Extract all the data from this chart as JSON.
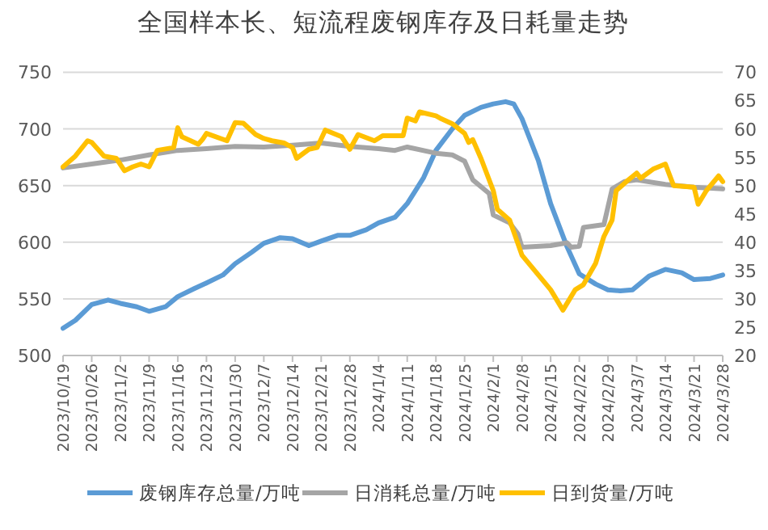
{
  "chart_data": {
    "type": "line",
    "title": "全国样本长、短流程废钢库存及日耗量走势",
    "xlim": [
      "2023-10-19",
      "2024-03-28"
    ],
    "xticks": [
      {
        "value": "2023-10-19",
        "label": "2023/10/19"
      },
      {
        "value": "2023-10-26",
        "label": "2023/10/26"
      },
      {
        "value": "2023-11-02",
        "label": "2023/11/2"
      },
      {
        "value": "2023-11-09",
        "label": "2023/11/9"
      },
      {
        "value": "2023-11-16",
        "label": "2023/11/16"
      },
      {
        "value": "2023-11-23",
        "label": "2023/11/23"
      },
      {
        "value": "2023-11-30",
        "label": "2023/11/30"
      },
      {
        "value": "2023-12-07",
        "label": "2023/12/7"
      },
      {
        "value": "2023-12-14",
        "label": "2023/12/14"
      },
      {
        "value": "2023-12-21",
        "label": "2023/12/21"
      },
      {
        "value": "2023-12-28",
        "label": "2023/12/28"
      },
      {
        "value": "2024-01-04",
        "label": "2024/1/4"
      },
      {
        "value": "2024-01-11",
        "label": "2024/1/11"
      },
      {
        "value": "2024-01-18",
        "label": "2024/1/18"
      },
      {
        "value": "2024-01-25",
        "label": "2024/1/25"
      },
      {
        "value": "2024-02-01",
        "label": "2024/2/1"
      },
      {
        "value": "2024-02-08",
        "label": "2024/2/8"
      },
      {
        "value": "2024-02-15",
        "label": "2024/2/15"
      },
      {
        "value": "2024-02-22",
        "label": "2024/2/22"
      },
      {
        "value": "2024-02-29",
        "label": "2024/2/29"
      },
      {
        "value": "2024-03-07",
        "label": "2024/3/7"
      },
      {
        "value": "2024-03-14",
        "label": "2024/3/14"
      },
      {
        "value": "2024-03-21",
        "label": "2024/3/21"
      },
      {
        "value": "2024-03-28",
        "label": "2024/3/28"
      }
    ],
    "ylim": [
      500,
      750
    ],
    "yticks": [
      500,
      550,
      600,
      650,
      700,
      750
    ],
    "y2lim": [
      20,
      70
    ],
    "y2ticks": [
      20,
      25,
      30,
      35,
      40,
      45,
      50,
      55,
      60,
      65,
      70
    ],
    "grid": "y",
    "legend": "bottom",
    "series": [
      {
        "name": "废钢库存总量/万吨",
        "color": "#5b9bd5",
        "x": [
          "2023-10-19",
          "2023-10-22",
          "2023-10-26",
          "2023-10-30",
          "2023-11-02",
          "2023-11-06",
          "2023-11-09",
          "2023-11-13",
          "2023-11-16",
          "2023-11-20",
          "2023-11-23",
          "2023-11-27",
          "2023-11-30",
          "2023-12-04",
          "2023-12-07",
          "2023-12-11",
          "2023-12-14",
          "2023-12-18",
          "2023-12-21",
          "2023-12-25",
          "2023-12-28",
          "2024-01-01",
          "2024-01-04",
          "2024-01-08",
          "2024-01-11",
          "2024-01-15",
          "2024-01-18",
          "2024-01-22",
          "2024-01-25",
          "2024-01-29",
          "2024-02-01",
          "2024-02-04",
          "2024-02-06",
          "2024-02-08",
          "2024-02-12",
          "2024-02-15",
          "2024-02-19",
          "2024-02-22",
          "2024-02-26",
          "2024-02-29",
          "2024-03-03",
          "2024-03-06",
          "2024-03-10",
          "2024-03-14",
          "2024-03-18",
          "2024-03-21",
          "2024-03-25",
          "2024-03-28"
        ],
        "values": [
          524,
          531,
          545,
          549,
          546,
          543,
          539,
          543,
          552,
          559,
          564,
          571,
          581,
          591,
          599,
          604,
          603,
          597,
          601,
          606,
          606,
          611,
          617,
          622,
          634,
          657,
          681,
          700,
          712,
          719,
          722,
          724,
          722,
          709,
          672,
          634,
          596,
          572,
          563,
          558,
          557,
          558,
          570,
          576,
          573,
          567,
          568,
          571
        ]
      },
      {
        "name": "日消耗总量/万吨",
        "color": "#a5a5a5",
        "axis": "y2",
        "x": [
          "2023-10-19",
          "2023-10-26",
          "2023-11-02",
          "2023-11-09",
          "2023-11-16",
          "2023-11-23",
          "2023-11-30",
          "2023-12-07",
          "2023-12-14",
          "2023-12-21",
          "2023-12-28",
          "2024-01-04",
          "2024-01-08",
          "2024-01-11",
          "2024-01-18",
          "2024-01-22",
          "2024-01-25",
          "2024-01-27",
          "2024-01-31",
          "2024-02-01",
          "2024-02-05",
          "2024-02-07",
          "2024-02-08",
          "2024-02-15",
          "2024-02-19",
          "2024-02-20",
          "2024-02-22",
          "2024-02-23",
          "2024-02-28",
          "2024-03-01",
          "2024-03-04",
          "2024-03-07",
          "2024-03-14",
          "2024-03-21",
          "2024-03-28"
        ],
        "values": [
          53.1,
          53.8,
          54.5,
          55.4,
          56.2,
          56.5,
          56.9,
          56.8,
          57.1,
          57.5,
          56.9,
          56.5,
          56.2,
          56.8,
          55.7,
          55.4,
          54.3,
          51,
          48.6,
          44.8,
          43.4,
          41.5,
          39.1,
          39.4,
          39.9,
          39.1,
          39.3,
          42.6,
          43.1,
          49.4,
          50.7,
          51,
          50.2,
          49.7,
          49.4
        ]
      },
      {
        "name": "日到货量/万吨",
        "color": "#ffc000",
        "axis": "y2",
        "x": [
          "2023-10-19",
          "2023-10-22",
          "2023-10-25",
          "2023-10-26",
          "2023-10-29",
          "2023-11-01",
          "2023-11-03",
          "2023-11-05",
          "2023-11-07",
          "2023-11-09",
          "2023-11-11",
          "2023-11-15",
          "2023-11-16",
          "2023-11-17",
          "2023-11-21",
          "2023-11-22",
          "2023-11-23",
          "2023-11-28",
          "2023-11-30",
          "2023-12-02",
          "2023-12-05",
          "2023-12-07",
          "2023-12-09",
          "2023-12-12",
          "2023-12-14",
          "2023-12-15",
          "2023-12-18",
          "2023-12-20",
          "2023-12-22",
          "2023-12-26",
          "2023-12-28",
          "2023-12-30",
          "2024-01-03",
          "2024-01-05",
          "2024-01-10",
          "2024-01-11",
          "2024-01-13",
          "2024-01-14",
          "2024-01-18",
          "2024-01-19",
          "2024-01-22",
          "2024-01-25",
          "2024-01-26",
          "2024-01-27",
          "2024-01-29",
          "2024-02-01",
          "2024-02-02",
          "2024-02-05",
          "2024-02-08",
          "2024-02-15",
          "2024-02-18",
          "2024-02-21",
          "2024-02-23",
          "2024-02-26",
          "2024-02-28",
          "2024-03-01",
          "2024-03-02",
          "2024-03-05",
          "2024-03-07",
          "2024-03-08",
          "2024-03-11",
          "2024-03-14",
          "2024-03-16",
          "2024-03-21",
          "2024-03-22",
          "2024-03-24",
          "2024-03-27",
          "2024-03-28"
        ],
        "values": [
          53.3,
          55.2,
          57.9,
          57.6,
          55.2,
          54.8,
          52.6,
          53.3,
          53.8,
          53.3,
          56.2,
          56.7,
          60.2,
          58.6,
          57.3,
          58.1,
          59.2,
          57.9,
          61.1,
          61,
          59,
          58.3,
          57.9,
          57.5,
          56.7,
          54.8,
          56.4,
          56.7,
          59.8,
          58.6,
          56.4,
          59,
          57.9,
          58.8,
          58.8,
          61.9,
          61.4,
          63,
          62.3,
          61.9,
          60.9,
          59.2,
          57.6,
          58.1,
          54.8,
          49.1,
          45.8,
          43.9,
          37.7,
          31.6,
          28,
          31.6,
          32.5,
          36.3,
          41,
          43.9,
          49.1,
          51,
          52.2,
          51.3,
          52.9,
          53.8,
          50,
          49.7,
          46.7,
          49.1,
          51.7,
          50.7
        ]
      }
    ]
  }
}
